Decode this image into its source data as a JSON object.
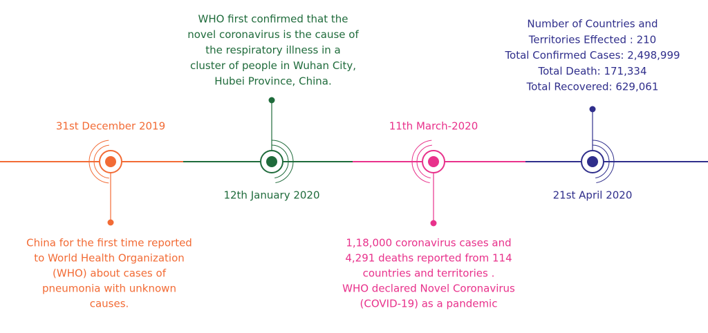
{
  "events": [
    {
      "date": "31st December 2019",
      "color": "#f26b35",
      "lines": [
        "China for the first time reported",
        "to World Health Organization",
        "(WHO) about cases of",
        "pneumonia with unknown",
        "causes."
      ]
    },
    {
      "date": "12th January 2020",
      "color": "#1f6b3b",
      "lines": [
        "WHO first confirmed that the",
        "novel coronavirus is the cause of",
        "the respiratory illness in a",
        "cluster of people in Wuhan City,",
        "Hubei Province, China."
      ]
    },
    {
      "date": "11th March-2020",
      "color": "#e8318b",
      "lines": [
        "1,18,000 coronavirus cases and",
        "4,291 deaths reported from 114",
        "countries and territories .",
        "WHO declared Novel Coronavirus",
        "(COVID-19) as a pandemic"
      ]
    },
    {
      "date": "21st April 2020",
      "color": "#2f2e8b",
      "lines": [
        "Number of Countries and",
        "Territories Effected : 210",
        "Total Confirmed Cases: 2,498,999",
        "Total Death: 171,334",
        "Total Recovered: 629,061"
      ]
    }
  ]
}
